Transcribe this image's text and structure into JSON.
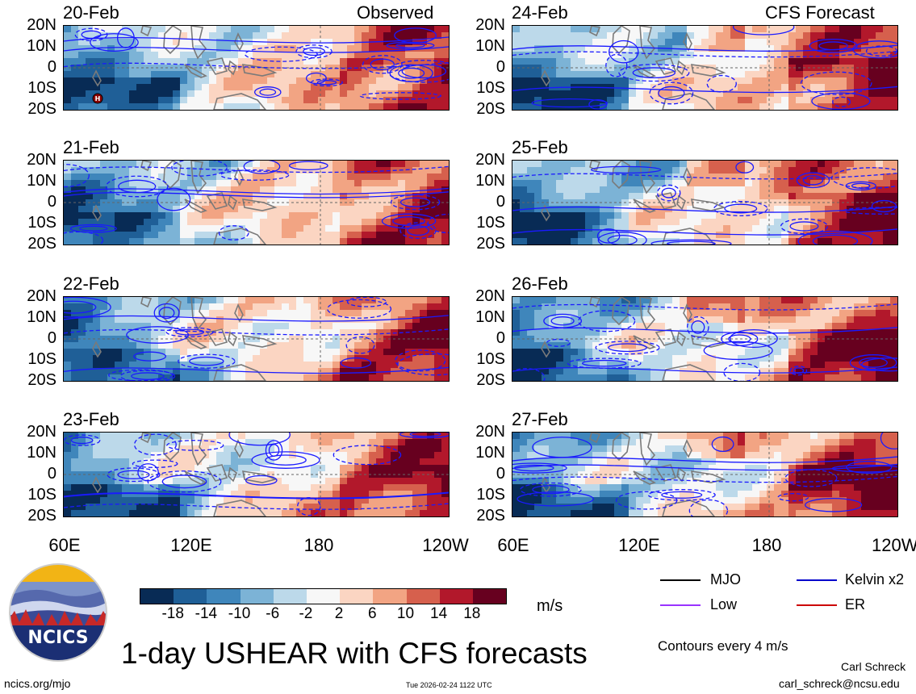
{
  "chart_data": {
    "type": "heatmap",
    "title": "1-day USHEAR with CFS forecasts",
    "variable": "USHEAR",
    "units": "m/s",
    "column_headers": [
      "Observed",
      "CFS Forecast"
    ],
    "panels": [
      {
        "date": "20-Feb",
        "column": "Observed"
      },
      {
        "date": "21-Feb",
        "column": "Observed"
      },
      {
        "date": "22-Feb",
        "column": "Observed"
      },
      {
        "date": "23-Feb",
        "column": "Observed"
      },
      {
        "date": "24-Feb",
        "column": "CFS Forecast"
      },
      {
        "date": "25-Feb",
        "column": "CFS Forecast"
      },
      {
        "date": "26-Feb",
        "column": "CFS Forecast"
      },
      {
        "date": "27-Feb",
        "column": "CFS Forecast"
      }
    ],
    "lat_labels": [
      "20N",
      "10N",
      "0",
      "10S",
      "20S"
    ],
    "lat_range": [
      -20,
      20
    ],
    "lon_labels": [
      "60E",
      "120E",
      "180",
      "120W"
    ],
    "lon_range": [
      60,
      240
    ],
    "colorbar": {
      "ticks": [
        "-18",
        "-14",
        "-10",
        "-6",
        "-2",
        "2",
        "6",
        "10",
        "14",
        "18"
      ],
      "colors": [
        "#082b55",
        "#1f5f97",
        "#3f86bb",
        "#7cb3d6",
        "#bcd9ea",
        "#f7f7f7",
        "#fbd5c2",
        "#f2a483",
        "#d6604d",
        "#b2182b",
        "#67001f"
      ]
    },
    "legend": [
      {
        "label": "MJO",
        "color": "#000000"
      },
      {
        "label": "Kelvin x2",
        "color": "#0000cc"
      },
      {
        "label": "Low",
        "color": "#9933ff"
      },
      {
        "label": "ER",
        "color": "#cc0000"
      }
    ],
    "contour_note": "Contours every 4 m/s",
    "tc_marker": "H"
  },
  "footer": {
    "logo_text": "NCICS",
    "website": "ncics.org/mjo",
    "timestamp": "Tue 2026-02-24 1122 UTC",
    "author": "Carl Schreck",
    "email": "carl_schreck@ncsu.edu"
  }
}
